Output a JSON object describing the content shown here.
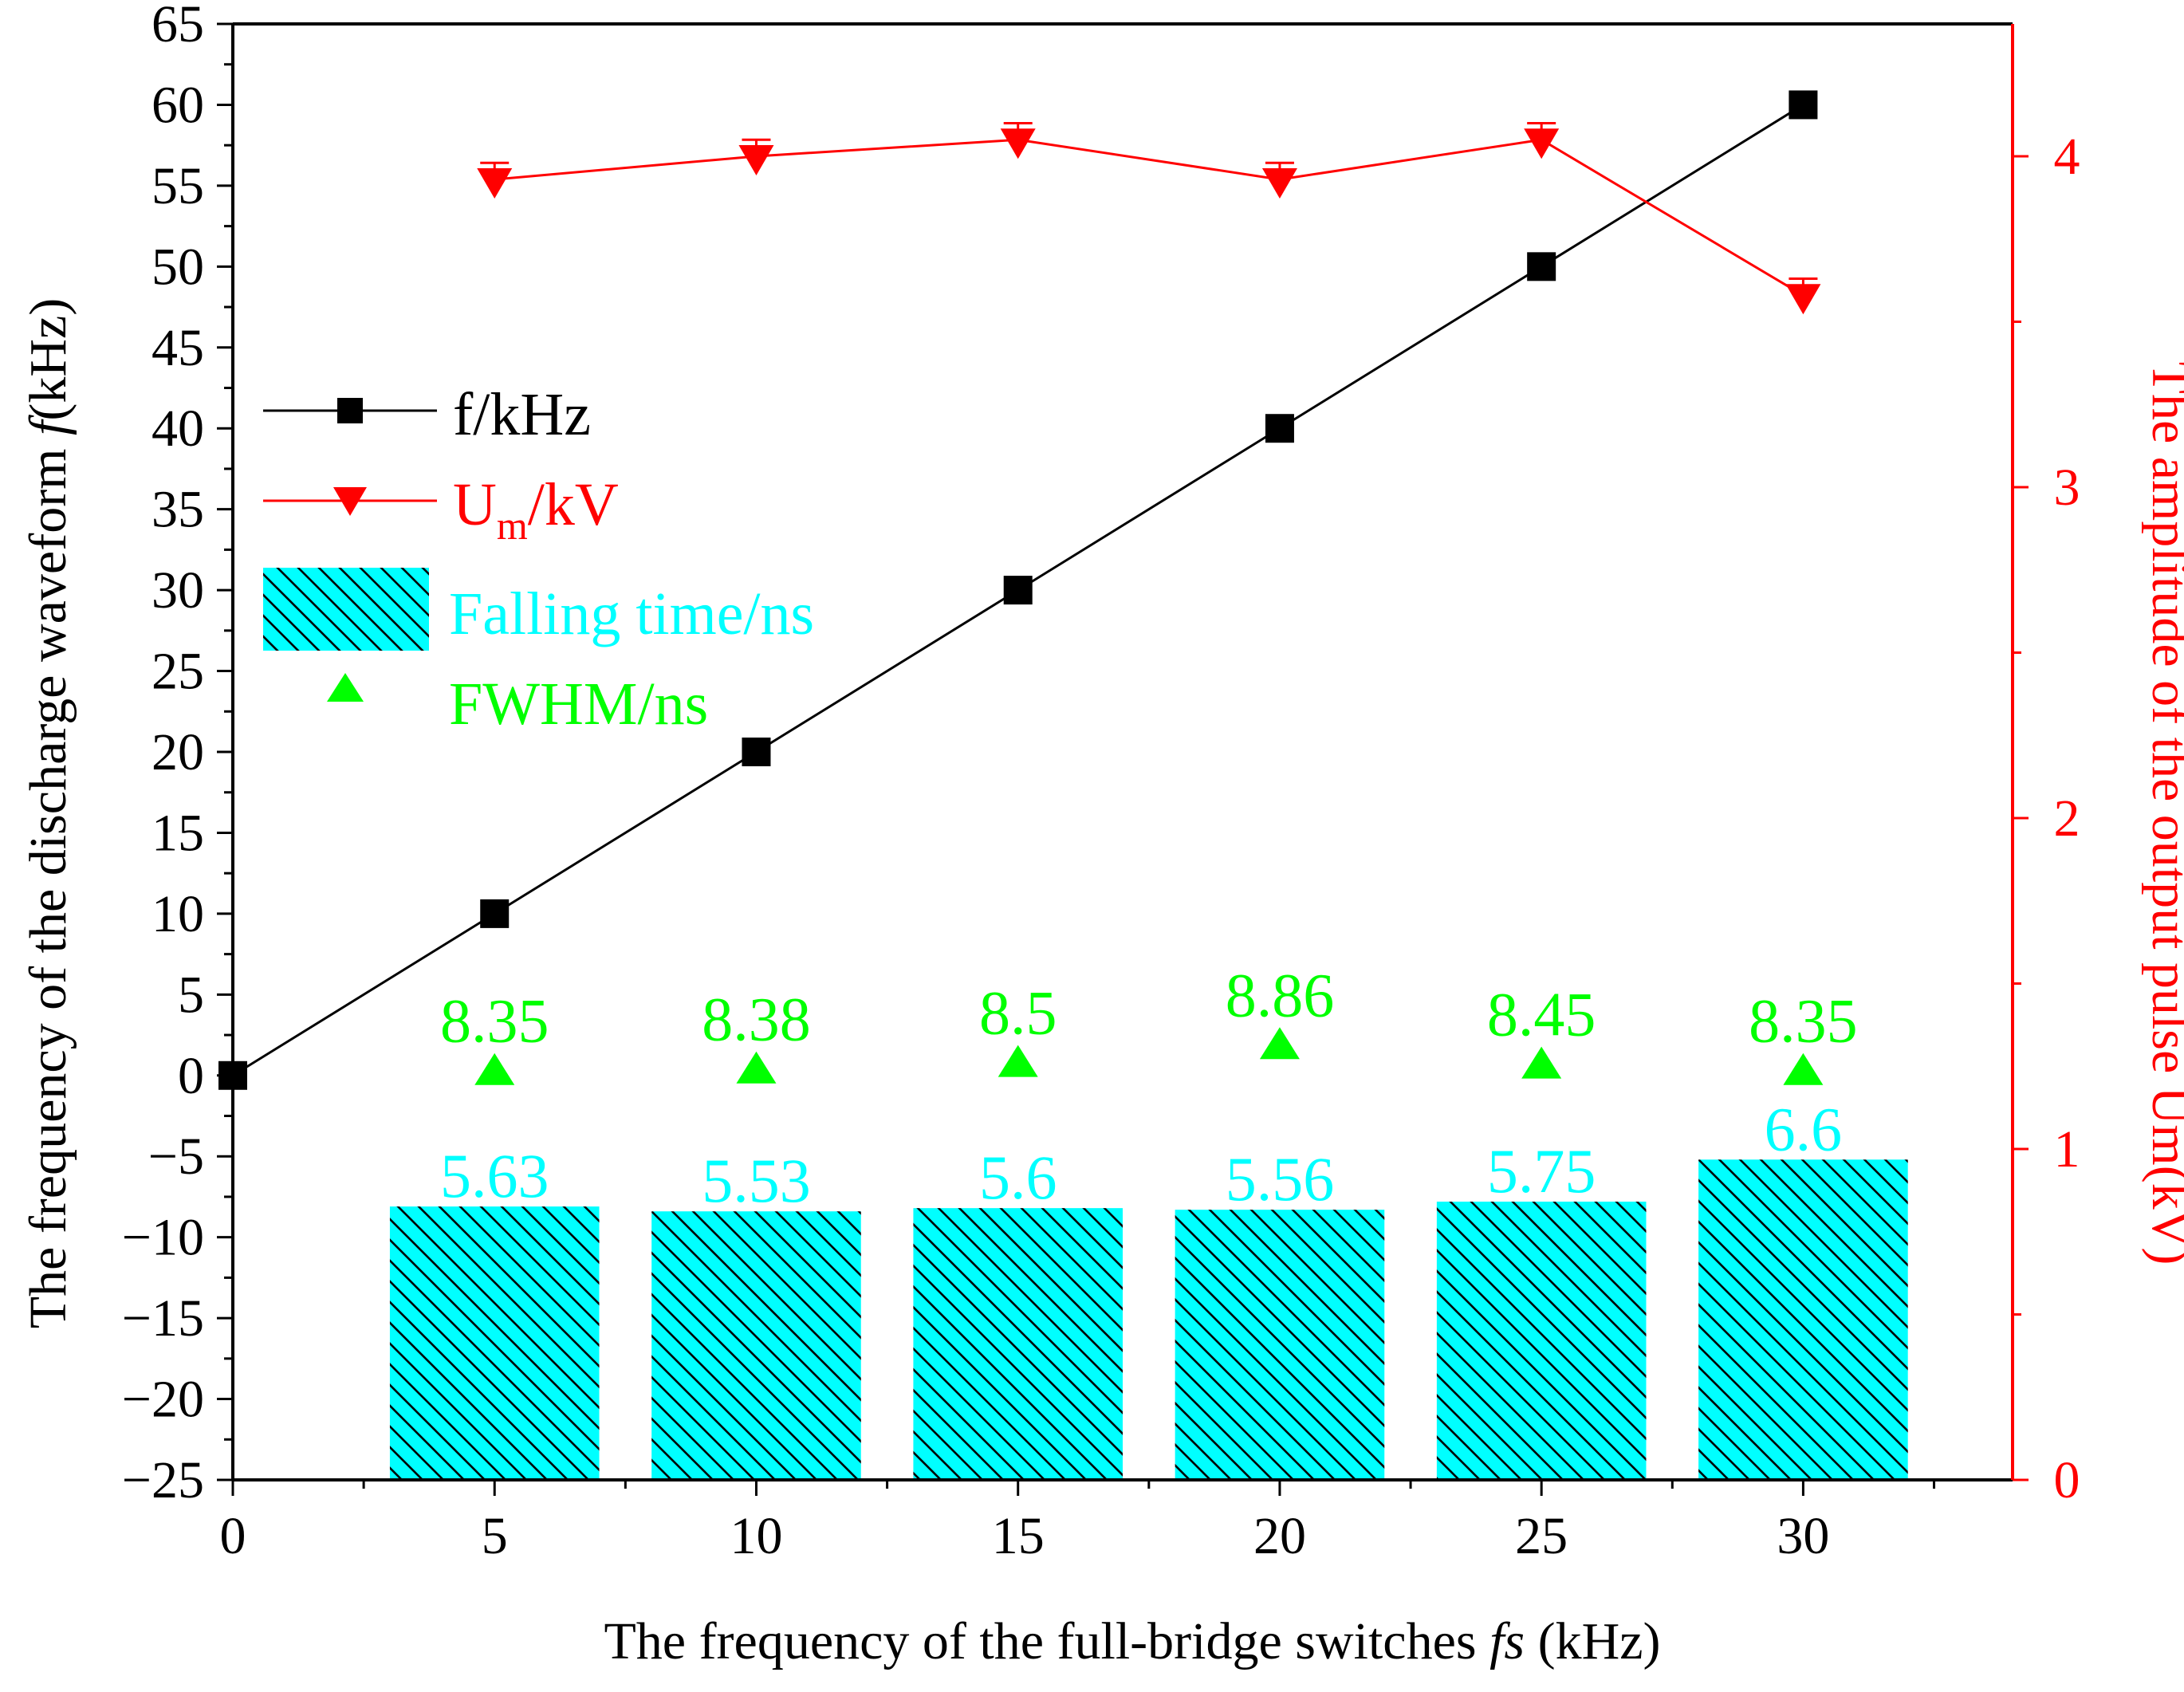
{
  "colors": {
    "f_series": "#000000",
    "um_series": "#ff0000",
    "bar_fill": "#00ffff",
    "fwhm": "#00ff00",
    "falling_label": "#00ffff",
    "axis": "#000000",
    "right_axis": "#ff0000"
  },
  "chart_data": {
    "type": "bar+line+scatter",
    "x": [
      5,
      10,
      15,
      20,
      25,
      30
    ],
    "x_ticks": [
      0,
      5,
      10,
      15,
      20,
      25,
      30
    ],
    "x_tick_labels": [
      "0",
      "5",
      "10",
      "15",
      "20",
      "25",
      "30"
    ],
    "xlim": [
      0,
      34
    ],
    "xlabel_pre": "The frequency of the full-bridge switches ",
    "xlabel_var": "fs",
    "xlabel_post": " (kHz)",
    "y_ticks": [
      -25,
      -20,
      -15,
      -10,
      -5,
      0,
      5,
      10,
      15,
      20,
      25,
      30,
      35,
      40,
      45,
      50,
      55,
      60,
      65
    ],
    "y_tick_labels": [
      "−25",
      "−20",
      "−15",
      "−10",
      "−5",
      "0",
      "5",
      "10",
      "15",
      "20",
      "25",
      "30",
      "35",
      "40",
      "45",
      "50",
      "55",
      "60",
      "65"
    ],
    "ylim": [
      -25,
      65
    ],
    "ylabel_pre": "The frequency of the discharge waveform ",
    "ylabel_var": "f",
    "ylabel_post": "(kHz)",
    "y2_ticks": [
      0,
      1,
      2,
      3,
      4
    ],
    "y2_tick_labels": [
      "0",
      "1",
      "2",
      "3",
      "4"
    ],
    "y2lim": [
      0,
      4.4
    ],
    "y2label": "The amplitude of the output pulse Um(kV)",
    "series": [
      {
        "name": "f/kHz",
        "axis": "left",
        "style": "line-square",
        "x": [
          0,
          5,
          10,
          15,
          20,
          25,
          30
        ],
        "values": [
          0,
          10,
          20,
          30,
          40,
          50,
          60
        ]
      },
      {
        "name": "Um/kV",
        "axis": "right",
        "style": "line-down-triangle",
        "x": [
          5,
          10,
          15,
          20,
          25,
          30
        ],
        "values": [
          3.93,
          4.0,
          4.05,
          3.93,
          4.05,
          3.58
        ],
        "error": 0.05
      },
      {
        "name": "Falling time/ns",
        "axis": "left",
        "style": "bar-hatched",
        "x": [
          5,
          10,
          15,
          20,
          25,
          30
        ],
        "values": [
          -8.1,
          -8.4,
          -8.2,
          -8.3,
          -7.8,
          -5.2
        ],
        "base": -25,
        "labels": [
          "5.63",
          "5.53",
          "5.6",
          "5.56",
          "5.75",
          "6.6"
        ]
      },
      {
        "name": "FWHM/ns",
        "axis": "left",
        "style": "up-triangle",
        "x": [
          5,
          10,
          15,
          20,
          25,
          30
        ],
        "values": [
          0.2,
          0.3,
          0.7,
          1.8,
          0.6,
          0.2
        ],
        "labels": [
          "8.35",
          "8.38",
          "8.5",
          "8.86",
          "8.45",
          "8.35"
        ]
      }
    ],
    "legend": {
      "position": "left-upper",
      "f_label": "f/kHz",
      "um_base": "U",
      "um_sub": "m",
      "um_rest": "/kV",
      "falling_label": "Falling time/ns",
      "fwhm_label": "FWHM/ns"
    }
  }
}
